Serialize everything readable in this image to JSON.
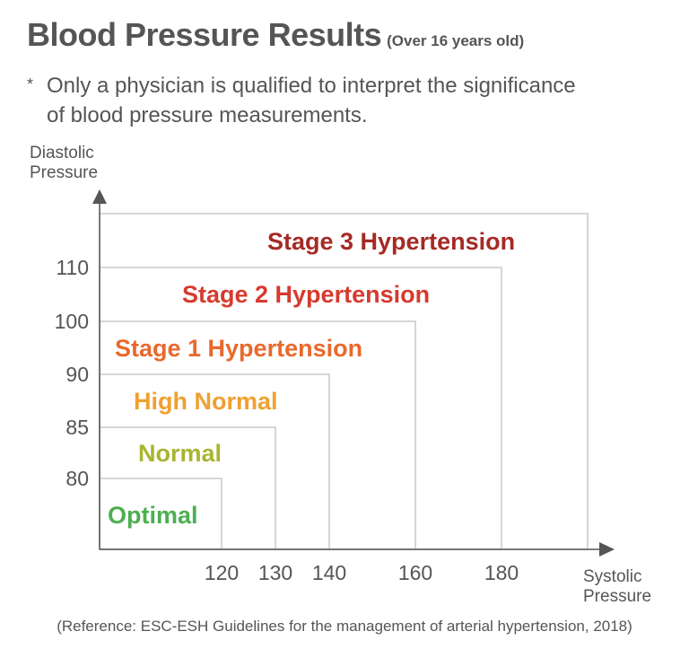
{
  "header": {
    "title": "Blood Pressure Results",
    "subtitle": "(Over 16 years old)"
  },
  "note": {
    "marker": "*",
    "line1": "Only a physician is qualified to interpret the significance",
    "line2": "of blood pressure measurements."
  },
  "axes": {
    "y_title_line1": "Diastolic",
    "y_title_line2": "Pressure",
    "x_title_line1": "Systolic",
    "x_title_line2": "Pressure",
    "y_ticks": [
      "80",
      "85",
      "90",
      "100",
      "110"
    ],
    "x_ticks": [
      "120",
      "130",
      "140",
      "160",
      "180"
    ]
  },
  "zones": [
    {
      "label": "Optimal",
      "color": "#4caf50",
      "systolic_below": 120,
      "diastolic_below": 80
    },
    {
      "label": "Normal",
      "color": "#a8b530",
      "systolic_below": 130,
      "diastolic_below": 85
    },
    {
      "label": "High Normal",
      "color": "#f0a030",
      "systolic_below": 140,
      "diastolic_below": 90
    },
    {
      "label": "Stage 1 Hypertension",
      "color": "#e8692c",
      "systolic_below": 160,
      "diastolic_below": 100
    },
    {
      "label": "Stage 2 Hypertension",
      "color": "#d63a2f",
      "systolic_below": 180,
      "diastolic_below": 110
    },
    {
      "label": "Stage 3 Hypertension",
      "color": "#a52a25"
    }
  ],
  "reference": "(Reference: ESC-ESH Guidelines for the management of arterial hypertension, 2018)"
}
